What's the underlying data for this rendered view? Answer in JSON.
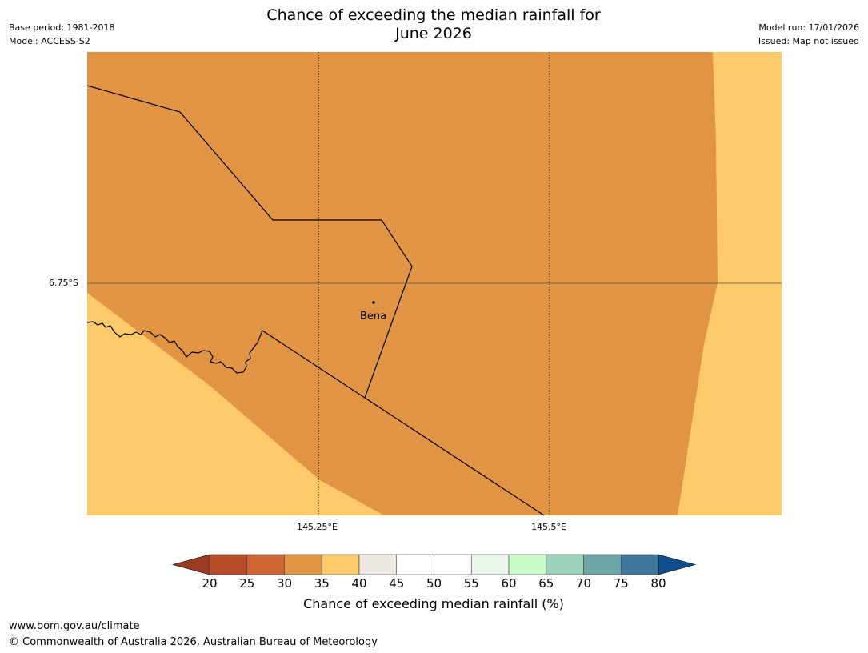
{
  "header": {
    "title_line1": "Chance of exceeding the median rainfall for",
    "title_line2": "June 2026",
    "base_period": "Base period: 1981-2018",
    "model": "Model: ACCESS-S2",
    "model_run": "Model run: 17/01/2026",
    "issued": "Issued: Map not issued"
  },
  "map": {
    "place_label": "Bena",
    "lat_label": "6.75°S",
    "lon_labels": [
      "145.25°E",
      "145.5°E"
    ]
  },
  "colorbar": {
    "title": "Chance of exceeding median rainfall (%)",
    "ticks": [
      "20",
      "25",
      "30",
      "35",
      "40",
      "45",
      "50",
      "55",
      "60",
      "65",
      "70",
      "75",
      "80"
    ],
    "colors": {
      "below": "#9b3b24",
      "bins": [
        "#b54b28",
        "#cd6534",
        "#e09444",
        "#fdca69",
        "#ede8e2",
        "#ffffff",
        "#ffffff",
        "#e9f6ea",
        "#c9fcc9",
        "#9dd2bd",
        "#6ea6a7",
        "#3d7698"
      ],
      "above": "#0e4e8e"
    }
  },
  "footer": {
    "url": "www.bom.gov.au/climate",
    "copyright": "© Commonwealth of Australia 2026, Australian Bureau of Meteorology"
  }
}
